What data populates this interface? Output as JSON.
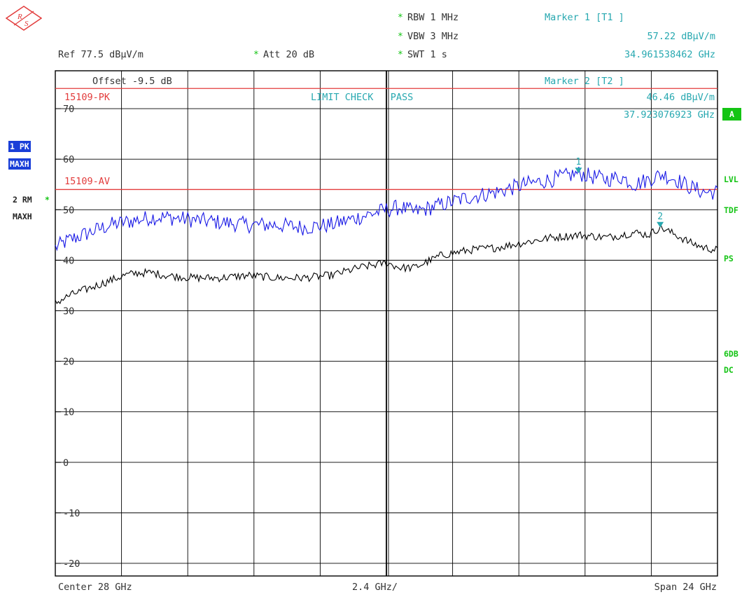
{
  "header": {
    "rbw": "RBW 1 MHz",
    "vbw": "VBW 3 MHz",
    "swt": "SWT 1 s",
    "ref": "Ref  77.5 dBµV/m",
    "att": "Att  20 dB",
    "star": "*",
    "marker1_title": "Marker 1 [T1 ]",
    "marker1_level": "57.22 dBµV/m",
    "marker1_freq": "34.961538462 GHz"
  },
  "plot_text": {
    "offset": "Offset  -9.5 dB",
    "limit_pk": "15109-PK",
    "limit_av": "15109-AV",
    "limit_check": "LIMIT CHECK   PASS",
    "marker2_title": "Marker 2 [T2 ]",
    "marker2_level": "46.46 dBµV/m",
    "marker2_freq": "37.923076923 GHz",
    "marker1_label": "1",
    "marker2_label": "2"
  },
  "side_left": {
    "trace1_mode": "1 PK",
    "trace1_detector": "MAXH",
    "trace2_mode": "2 RM",
    "trace2_detector": "MAXH",
    "star": "*"
  },
  "side_right": {
    "a": "A",
    "lvl": "LVL",
    "tdf": "TDF",
    "ps": "PS",
    "sixdb": "6DB",
    "dc": "DC"
  },
  "footer": {
    "center": "Center  28 GHz",
    "per_div": "2.4 GHz/",
    "span": "Span  24 GHz"
  },
  "colors": {
    "trace1": "#1a1ae6",
    "trace2": "#000000",
    "limit": "#e23c3c",
    "marker": "#27a8b0",
    "grid": "#000000"
  },
  "chart_data": {
    "type": "line",
    "title": "",
    "xlabel": "",
    "ylabel": "",
    "unit": "dBµV/m",
    "xlim": [
      16,
      40
    ],
    "ylim": [
      -22.5,
      77.5
    ],
    "y_ticks": [
      70,
      60,
      50,
      40,
      30,
      20,
      10,
      0,
      -10,
      -20
    ],
    "grid": true,
    "limit_lines": [
      {
        "name": "15109-PK",
        "value": 74
      },
      {
        "name": "15109-AV",
        "value": 54
      }
    ],
    "markers": [
      {
        "label": "1",
        "trace": 1,
        "x": 34.961538462,
        "y": 57.22
      },
      {
        "label": "2",
        "trace": 2,
        "x": 37.923076923,
        "y": 46.46
      }
    ],
    "series": [
      {
        "name": "1 PK MAXH",
        "x": [
          16,
          16.5,
          17,
          17.5,
          18,
          18.5,
          19,
          19.5,
          20,
          21,
          22,
          23,
          24,
          25,
          26,
          27,
          28,
          28.5,
          29,
          30,
          31,
          32,
          33,
          34,
          34.96,
          35.5,
          36,
          36.5,
          37,
          37.5,
          38,
          38.5,
          39,
          39.5,
          40
        ],
        "y": [
          42.5,
          44,
          45,
          46,
          47,
          47.5,
          48,
          48.5,
          48.5,
          48,
          47.5,
          47,
          47,
          46.5,
          47,
          48.5,
          50,
          50.5,
          49.5,
          51,
          52.5,
          53.5,
          55,
          56,
          57.2,
          56.5,
          56,
          56.5,
          55,
          56,
          57,
          56,
          54.5,
          53.5,
          53.5
        ]
      },
      {
        "name": "2 RM MAXH",
        "x": [
          16,
          16.5,
          17,
          17.5,
          18,
          18.5,
          19,
          19.5,
          20,
          21,
          22,
          23,
          24,
          25,
          26,
          27,
          28,
          28.5,
          29,
          30,
          31,
          32,
          33,
          34,
          35,
          36,
          37,
          37.5,
          37.92,
          38.5,
          39,
          39.5,
          40
        ],
        "y": [
          31.5,
          33,
          34,
          35,
          36,
          37,
          37.5,
          37.5,
          37,
          36.5,
          36.5,
          37,
          36.5,
          36.5,
          37,
          38.5,
          39.5,
          38.5,
          38.5,
          41,
          42,
          42.5,
          43.5,
          44.5,
          45,
          44.5,
          45.5,
          45,
          46.5,
          45,
          43.5,
          42.5,
          42
        ]
      }
    ]
  }
}
